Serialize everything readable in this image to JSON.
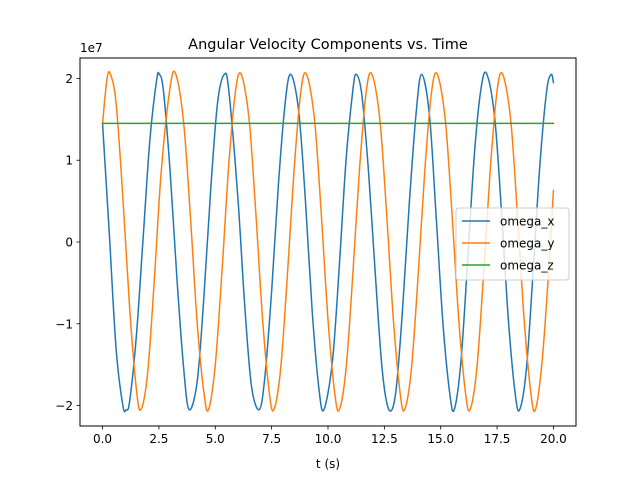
{
  "chart_data": {
    "type": "line",
    "title": "Angular Velocity Components vs. Time",
    "xlabel": "t (s)",
    "ylabel": "",
    "y_offset_label": "1e7",
    "xlim": [
      -1.0,
      21.0
    ],
    "ylim": [
      -2.25,
      2.25
    ],
    "y_scale_note": "values in units of 1e7",
    "xticks": [
      0.0,
      2.5,
      5.0,
      7.5,
      10.0,
      12.5,
      15.0,
      17.5,
      20.0
    ],
    "xtick_labels": [
      "0.0",
      "2.5",
      "5.0",
      "7.5",
      "10.0",
      "12.5",
      "15.0",
      "17.5",
      "20.0"
    ],
    "yticks": [
      -2,
      -1,
      0,
      1,
      2
    ],
    "ytick_labels": [
      "−2",
      "−1",
      "0",
      "1",
      "2"
    ],
    "grid": false,
    "legend_position": "center-right",
    "series": [
      {
        "name": "omega_x",
        "color": "#1f77b4",
        "x": [
          0.0,
          0.3,
          0.6,
          0.9,
          1.05,
          1.2,
          1.5,
          1.8,
          2.1,
          2.4,
          2.52,
          2.7,
          3.0,
          3.3,
          3.6,
          3.84,
          4.2,
          4.5,
          4.8,
          5.1,
          5.4,
          5.6,
          6.0,
          6.3,
          6.6,
          6.95,
          7.2,
          7.5,
          7.8,
          8.1,
          8.35,
          8.7,
          9.0,
          9.3,
          9.6,
          9.82,
          10.2,
          10.5,
          10.8,
          11.1,
          11.25,
          11.5,
          11.8,
          12.1,
          12.4,
          12.7,
          13.0,
          13.3,
          13.6,
          13.9,
          14.15,
          14.5,
          14.8,
          15.1,
          15.4,
          15.6,
          15.9,
          16.2,
          16.5,
          16.8,
          17.05,
          17.4,
          17.7,
          18.0,
          18.3,
          18.5,
          18.8,
          19.1,
          19.4,
          19.7,
          19.9,
          20.0
        ],
        "values": [
          1.45,
          0.1,
          -1.3,
          -2.0,
          -2.05,
          -1.95,
          -1.15,
          0.05,
          1.25,
          1.98,
          2.05,
          1.85,
          0.85,
          -0.45,
          -1.55,
          -2.05,
          -1.7,
          -0.65,
          0.65,
          1.7,
          2.05,
          1.85,
          0.55,
          -0.75,
          -1.75,
          -2.05,
          -1.65,
          -0.6,
          0.7,
          1.7,
          2.05,
          1.6,
          0.5,
          -0.85,
          -1.8,
          -2.05,
          -1.45,
          -0.3,
          1.0,
          1.85,
          2.05,
          1.8,
          0.85,
          -0.4,
          -1.55,
          -2.05,
          -1.85,
          -0.85,
          0.45,
          1.55,
          2.05,
          1.55,
          0.3,
          -1.0,
          -1.85,
          -2.05,
          -1.45,
          -0.2,
          1.1,
          1.9,
          2.05,
          1.5,
          0.35,
          -0.95,
          -1.85,
          -2.05,
          -1.55,
          -0.35,
          0.95,
          1.85,
          2.05,
          1.95
        ]
      },
      {
        "name": "omega_y",
        "color": "#ff7f0e",
        "x": [
          0.0,
          0.2,
          0.35,
          0.6,
          0.9,
          1.2,
          1.5,
          1.7,
          2.0,
          2.3,
          2.6,
          3.0,
          3.25,
          3.6,
          3.9,
          4.2,
          4.5,
          4.7,
          5.0,
          5.3,
          5.6,
          5.9,
          6.15,
          6.5,
          6.8,
          7.1,
          7.4,
          7.6,
          7.9,
          8.2,
          8.5,
          8.8,
          9.05,
          9.4,
          9.7,
          10.0,
          10.3,
          10.5,
          10.8,
          11.1,
          11.4,
          11.7,
          11.95,
          12.3,
          12.6,
          12.9,
          13.2,
          13.4,
          13.7,
          14.0,
          14.3,
          14.6,
          14.85,
          15.2,
          15.5,
          15.8,
          16.1,
          16.3,
          16.6,
          16.9,
          17.2,
          17.5,
          17.75,
          18.1,
          18.4,
          18.7,
          19.0,
          19.2,
          19.5,
          19.8,
          20.0
        ],
        "values": [
          1.45,
          2.0,
          2.05,
          1.7,
          0.55,
          -0.8,
          -1.8,
          -2.05,
          -1.6,
          -0.45,
          0.85,
          1.9,
          2.05,
          1.45,
          0.3,
          -1.0,
          -1.85,
          -2.05,
          -1.5,
          -0.35,
          0.95,
          1.85,
          2.05,
          1.5,
          0.35,
          -0.95,
          -1.85,
          -2.05,
          -1.55,
          -0.4,
          0.9,
          1.85,
          2.05,
          1.5,
          0.35,
          -0.95,
          -1.85,
          -2.05,
          -1.55,
          -0.4,
          0.9,
          1.85,
          2.05,
          1.5,
          0.35,
          -0.95,
          -1.85,
          -2.05,
          -1.55,
          -0.4,
          0.9,
          1.85,
          2.05,
          1.5,
          0.35,
          -0.95,
          -1.85,
          -2.05,
          -1.55,
          -0.4,
          0.9,
          1.85,
          2.05,
          1.5,
          0.35,
          -0.95,
          -1.85,
          -2.05,
          -1.45,
          -0.3,
          0.63
        ]
      },
      {
        "name": "omega_z",
        "color": "#2ca02c",
        "x": [
          0.0,
          20.0
        ],
        "values": [
          1.45,
          1.45
        ]
      }
    ]
  }
}
